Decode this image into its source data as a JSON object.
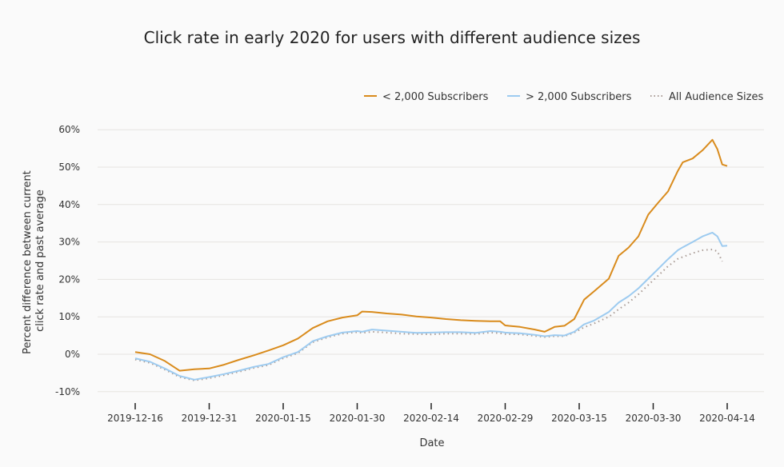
{
  "chart_data": {
    "type": "line",
    "title": "Click rate in early 2020 for users with different audience sizes",
    "xlabel": "Date",
    "ylabel": "Percent difference between current click rate and past average",
    "ylabel_lines": [
      "Percent difference between current",
      "click rate and past average"
    ],
    "xlim": [
      "2019-12-16",
      "2020-04-14"
    ],
    "ylim": [
      -10,
      60
    ],
    "yticks": [
      -10,
      0,
      10,
      20,
      30,
      40,
      50,
      60
    ],
    "ytick_labels": [
      "-10%",
      "0%",
      "10%",
      "20%",
      "30%",
      "40%",
      "50%",
      "60%"
    ],
    "xticks": [
      "2019-12-16",
      "2019-12-31",
      "2020-01-15",
      "2020-01-30",
      "2020-02-14",
      "2020-02-29",
      "2020-03-15",
      "2020-03-30",
      "2020-04-14"
    ],
    "grid": "horizontal",
    "legend_position": "top-right",
    "x": [
      "2019-12-16",
      "2019-12-19",
      "2019-12-22",
      "2019-12-25",
      "2019-12-28",
      "2019-12-31",
      "2020-01-03",
      "2020-01-06",
      "2020-01-09",
      "2020-01-12",
      "2020-01-15",
      "2020-01-18",
      "2020-01-21",
      "2020-01-24",
      "2020-01-27",
      "2020-01-30",
      "2020-01-31",
      "2020-02-02",
      "2020-02-05",
      "2020-02-08",
      "2020-02-11",
      "2020-02-14",
      "2020-02-17",
      "2020-02-20",
      "2020-02-23",
      "2020-02-26",
      "2020-02-28",
      "2020-02-29",
      "2020-03-03",
      "2020-03-06",
      "2020-03-08",
      "2020-03-10",
      "2020-03-12",
      "2020-03-14",
      "2020-03-16",
      "2020-03-18",
      "2020-03-21",
      "2020-03-23",
      "2020-03-25",
      "2020-03-27",
      "2020-03-29",
      "2020-03-31",
      "2020-04-02",
      "2020-04-04",
      "2020-04-05",
      "2020-04-07",
      "2020-04-09",
      "2020-04-11",
      "2020-04-12",
      "2020-04-13",
      "2020-04-14"
    ],
    "series": [
      {
        "name": "< 2,000 Subscribers",
        "color": "#d98b1c",
        "style": "solid",
        "values": [
          0.6,
          0.0,
          -1.8,
          -4.4,
          -4.0,
          -3.8,
          -2.8,
          -1.5,
          -0.3,
          1.0,
          2.4,
          4.2,
          7.0,
          8.8,
          9.8,
          10.4,
          11.4,
          11.3,
          10.9,
          10.6,
          10.1,
          9.8,
          9.4,
          9.1,
          8.9,
          8.8,
          8.8,
          7.7,
          7.3,
          6.6,
          6.0,
          7.3,
          7.6,
          9.4,
          14.6,
          16.8,
          20.2,
          26.3,
          28.5,
          31.5,
          37.3,
          40.5,
          43.5,
          49.0,
          51.3,
          52.3,
          54.5,
          57.3,
          54.8,
          50.7,
          50.3
        ]
      },
      {
        "name": "> 2,000 Subscribers",
        "color": "#9dcbf0",
        "style": "solid",
        "values": [
          -1.1,
          -2.0,
          -3.8,
          -5.8,
          -6.8,
          -6.1,
          -5.3,
          -4.4,
          -3.4,
          -2.6,
          -0.8,
          0.6,
          3.5,
          4.8,
          5.8,
          6.2,
          6.0,
          6.6,
          6.3,
          6.0,
          5.7,
          5.8,
          5.9,
          5.9,
          5.7,
          6.2,
          6.0,
          5.8,
          5.6,
          5.2,
          4.8,
          5.1,
          5.0,
          6.0,
          8.0,
          9.0,
          11.3,
          13.8,
          15.5,
          17.6,
          20.2,
          22.8,
          25.4,
          27.8,
          28.6,
          30.0,
          31.5,
          32.5,
          31.5,
          28.9,
          29.0
        ]
      },
      {
        "name": "All Audience Sizes",
        "color": "#a89a94",
        "style": "dotted",
        "values": [
          -1.4,
          -2.3,
          -4.1,
          -6.1,
          -7.0,
          -6.4,
          -5.6,
          -4.7,
          -3.7,
          -2.9,
          -1.1,
          0.3,
          3.2,
          4.5,
          5.5,
          5.9,
          5.7,
          6.0,
          5.8,
          5.5,
          5.4,
          5.3,
          5.5,
          5.5,
          5.4,
          5.8,
          5.6,
          5.4,
          5.3,
          4.9,
          4.6,
          4.8,
          4.8,
          5.8,
          7.2,
          8.2,
          10.0,
          12.0,
          13.8,
          16.0,
          18.5,
          21.0,
          23.5,
          25.5,
          26.0,
          27.0,
          27.8,
          28.0,
          27.5,
          24.8,
          null
        ]
      }
    ]
  }
}
